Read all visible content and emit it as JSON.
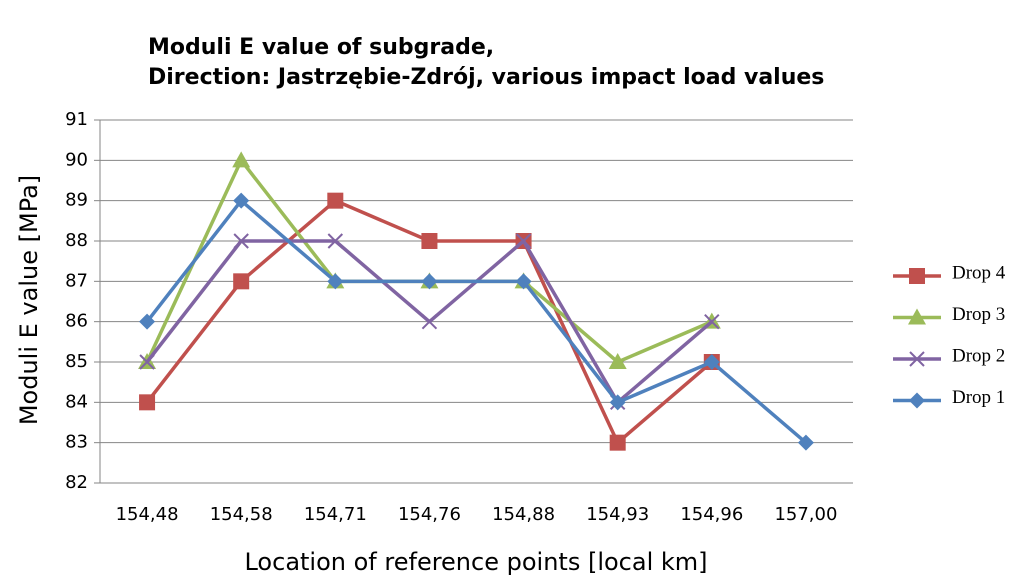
{
  "chart_data": {
    "type": "line",
    "title": [
      "Moduli E value of subgrade,",
      "Direction: Jastrzębie-Zdrój, various impact load values"
    ],
    "x_label": "Location of reference points [local km]",
    "y_label": "Moduli E value [MPa]",
    "categories": [
      "154,48",
      "154,58",
      "154,71",
      "154,76",
      "154,88",
      "154,93",
      "154,96",
      "157,00"
    ],
    "series": [
      {
        "name": "Drop 4",
        "color": "#c0504d",
        "marker": "square",
        "values": [
          84,
          87,
          89,
          88,
          88,
          83,
          85,
          null
        ]
      },
      {
        "name": "Drop 3",
        "color": "#9bbb59",
        "marker": "triangle",
        "values": [
          85,
          90,
          87,
          87,
          87,
          85,
          86,
          null
        ]
      },
      {
        "name": "Drop 2",
        "color": "#8064a2",
        "marker": "x",
        "values": [
          85,
          88,
          88,
          86,
          88,
          84,
          86,
          null
        ]
      },
      {
        "name": "Drop 1",
        "color": "#4f81bd",
        "marker": "diamond",
        "values": [
          86,
          89,
          87,
          87,
          87,
          84,
          85,
          83
        ]
      }
    ],
    "ylim": [
      82,
      91
    ],
    "yticks": [
      82,
      83,
      84,
      85,
      86,
      87,
      88,
      89,
      90,
      91
    ],
    "grid": true,
    "legend": "right"
  }
}
